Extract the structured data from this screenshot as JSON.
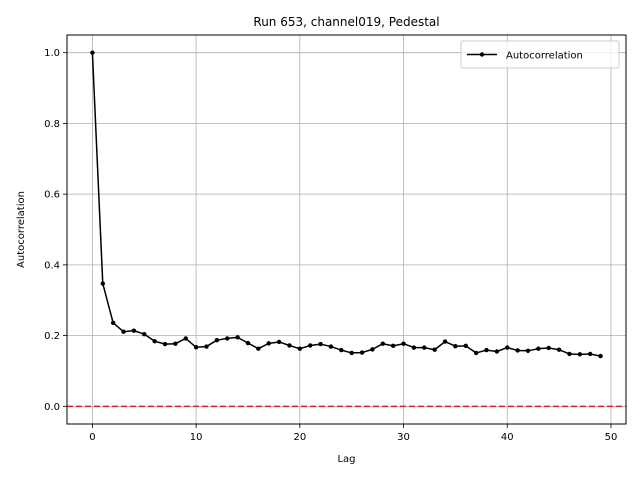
{
  "chart_data": {
    "type": "line",
    "title": "Run 653, channel019, Pedestal",
    "xlabel": "Lag",
    "ylabel": "Autocorrelation",
    "xlim": [
      -2.45,
      51.45
    ],
    "ylim": [
      -0.05,
      1.05
    ],
    "xticks": [
      0,
      10,
      20,
      30,
      40,
      50
    ],
    "yticks": [
      0.0,
      0.2,
      0.4,
      0.6,
      0.8,
      1.0
    ],
    "xtick_labels": [
      "0",
      "10",
      "20",
      "30",
      "40",
      "50"
    ],
    "ytick_labels": [
      "0.0",
      "0.2",
      "0.4",
      "0.6",
      "0.8",
      "1.0"
    ],
    "grid": true,
    "legend_position": "top-right",
    "series": [
      {
        "name": "Autocorrelation",
        "color": "#000000",
        "marker": "circle",
        "x": [
          0,
          1,
          2,
          3,
          4,
          5,
          6,
          7,
          8,
          9,
          10,
          11,
          12,
          13,
          14,
          15,
          16,
          17,
          18,
          19,
          20,
          21,
          22,
          23,
          24,
          25,
          26,
          27,
          28,
          29,
          30,
          31,
          32,
          33,
          34,
          35,
          36,
          37,
          38,
          39,
          40,
          41,
          42,
          43,
          44,
          45,
          46,
          47,
          48,
          49
        ],
        "values": [
          1.0,
          0.347,
          0.236,
          0.211,
          0.214,
          0.204,
          0.184,
          0.176,
          0.177,
          0.192,
          0.167,
          0.169,
          0.187,
          0.192,
          0.195,
          0.179,
          0.163,
          0.178,
          0.182,
          0.172,
          0.163,
          0.172,
          0.176,
          0.169,
          0.159,
          0.151,
          0.152,
          0.161,
          0.177,
          0.171,
          0.177,
          0.166,
          0.166,
          0.16,
          0.183,
          0.17,
          0.171,
          0.151,
          0.159,
          0.155,
          0.166,
          0.158,
          0.157,
          0.163,
          0.165,
          0.16,
          0.148,
          0.147,
          0.148,
          0.142
        ]
      }
    ],
    "reference_lines": [
      {
        "y": 0.0,
        "color": "#d62728",
        "style": "dashed"
      }
    ]
  }
}
